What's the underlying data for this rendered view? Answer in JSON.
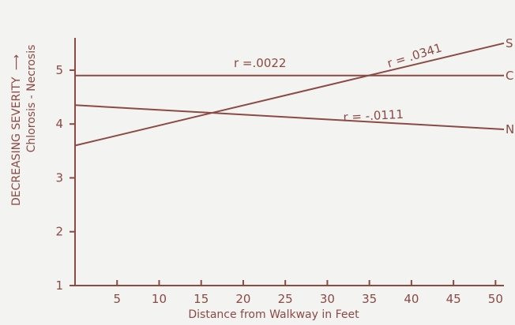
{
  "chart_data": {
    "type": "line",
    "title": "",
    "xlabel": "Distance from Walkway in Feet",
    "ylabel": "DECREASING SEVERITY",
    "ylabel_arrow": "⟶",
    "ylabel_sub": "Chlorosis - Necrosis",
    "xlim": [
      0,
      51
    ],
    "ylim": [
      1,
      5.6
    ],
    "x_ticks": [
      5,
      10,
      15,
      20,
      25,
      30,
      35,
      40,
      45,
      50
    ],
    "y_ticks": [
      1,
      2,
      3,
      4,
      5
    ],
    "grid": false,
    "series": [
      {
        "name": "C",
        "x": [
          0,
          51
        ],
        "y": [
          4.9,
          4.9
        ]
      },
      {
        "name": "S",
        "x": [
          0,
          51
        ],
        "y": [
          3.6,
          5.5
        ]
      },
      {
        "name": "N",
        "x": [
          0,
          51
        ],
        "y": [
          4.35,
          3.9
        ]
      }
    ],
    "annotations": [
      {
        "text": "r =.0022",
        "x": 22,
        "y": 5.06,
        "rotate": 0
      },
      {
        "text": "r = .0341",
        "x": 40.5,
        "y": 5.2,
        "rotate": -17
      },
      {
        "text": "r = -.0111",
        "x": 35.5,
        "y": 4.08,
        "rotate": -3
      }
    ]
  },
  "colors": {
    "line": "#8b4a44",
    "axis": "#8b4a44",
    "text": "#8b4a44",
    "background": "#f3f3f1"
  }
}
